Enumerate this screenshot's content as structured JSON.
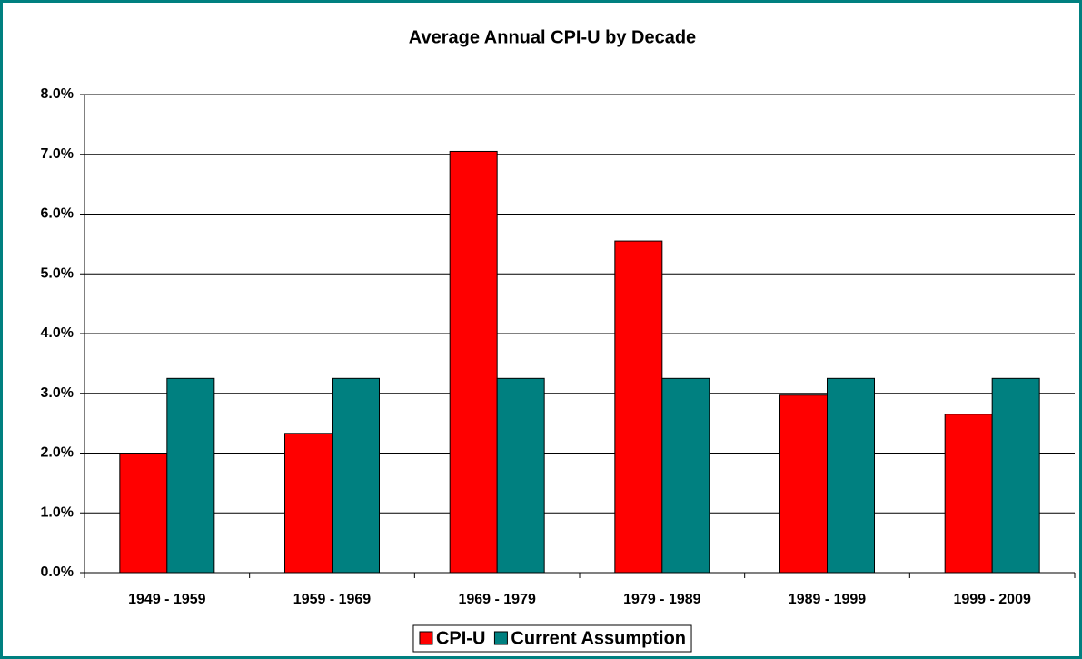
{
  "chart_data": {
    "type": "bar",
    "title": "Average Annual CPI-U by Decade",
    "categories": [
      "1949 - 1959",
      "1959 - 1969",
      "1969 - 1979",
      "1979 - 1989",
      "1989 - 1999",
      "1999 - 2009"
    ],
    "series": [
      {
        "name": "CPI-U",
        "color": "#ff0000",
        "values": [
          2.0,
          2.33,
          7.05,
          5.55,
          2.97,
          2.65
        ]
      },
      {
        "name": "Current Assumption",
        "color": "#008080",
        "values": [
          3.25,
          3.25,
          3.25,
          3.25,
          3.25,
          3.25
        ]
      }
    ],
    "ylim": [
      0,
      8
    ],
    "yticks": [
      {
        "value": 0,
        "label": "0.0%"
      },
      {
        "value": 1,
        "label": "1.0%"
      },
      {
        "value": 2,
        "label": "2.0%"
      },
      {
        "value": 3,
        "label": "3.0%"
      },
      {
        "value": 4,
        "label": "4.0%"
      },
      {
        "value": 5,
        "label": "5.0%"
      },
      {
        "value": 6,
        "label": "6.0%"
      },
      {
        "value": 7,
        "label": "7.0%"
      },
      {
        "value": 8,
        "label": "8.0%"
      }
    ],
    "grid": true,
    "legend": "bottom"
  }
}
